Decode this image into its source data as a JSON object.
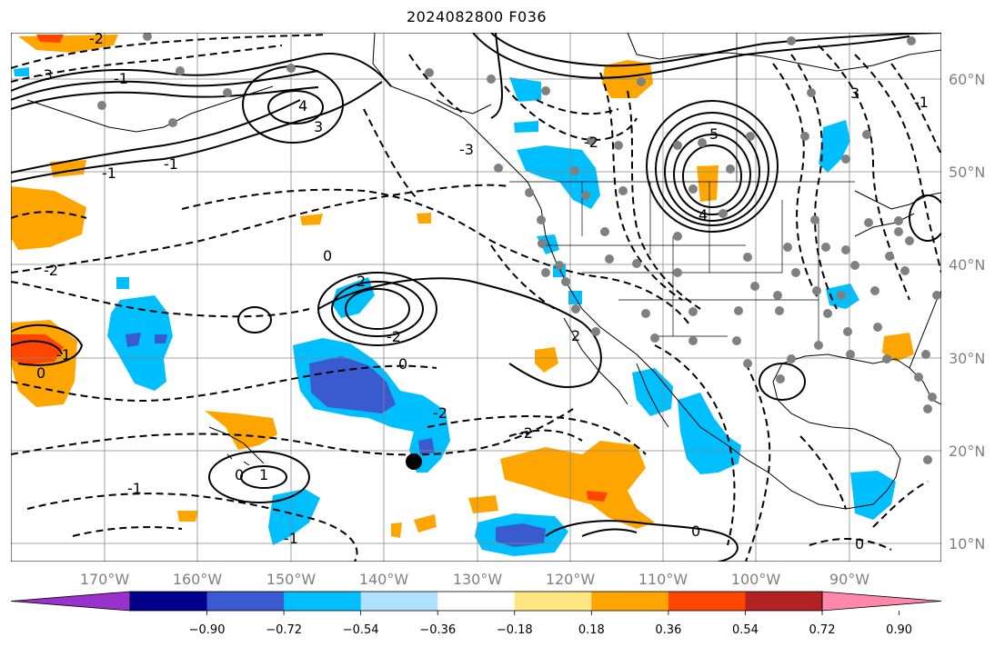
{
  "title": "2024082800 F036",
  "longitude_labels": [
    "170°W",
    "160°W",
    "150°W",
    "140°W",
    "130°W",
    "120°W",
    "110°W",
    "100°W",
    "90°W"
  ],
  "latitude_labels": [
    "60°N",
    "50°N",
    "40°N",
    "30°N",
    "20°N",
    "10°N"
  ],
  "colorbar": {
    "tick_labels": [
      "−0.90",
      "−0.72",
      "−0.54",
      "−0.36",
      "−0.18",
      "0.18",
      "0.36",
      "0.54",
      "0.72",
      "0.90"
    ],
    "colors": [
      "#9932cc",
      "#00008b",
      "#3a5ad0",
      "#00bfff",
      "#b0e0ff",
      "#ffffff",
      "#ffe680",
      "#ffa500",
      "#ff4500",
      "#b22222",
      "#ff88aa"
    ]
  },
  "fill_colors": {
    "neg_light": "#b0e0ff",
    "neg_mid": "#00bfff",
    "neg_strong": "#3a5ad0",
    "pos_light": "#ffe680",
    "pos_mid": "#ffa500",
    "pos_strong": "#ff4500"
  },
  "contour_labels": [
    "-3",
    "-2",
    "-1",
    "4",
    "3",
    "-3",
    "-2",
    "5",
    "3",
    "4",
    "-2",
    "-1",
    "2",
    "-2",
    "0",
    "2",
    "-2",
    "0",
    "-1",
    "-2",
    "-1",
    "0",
    "-1",
    "1",
    "0",
    "0",
    "-1",
    "0",
    "-1"
  ]
}
